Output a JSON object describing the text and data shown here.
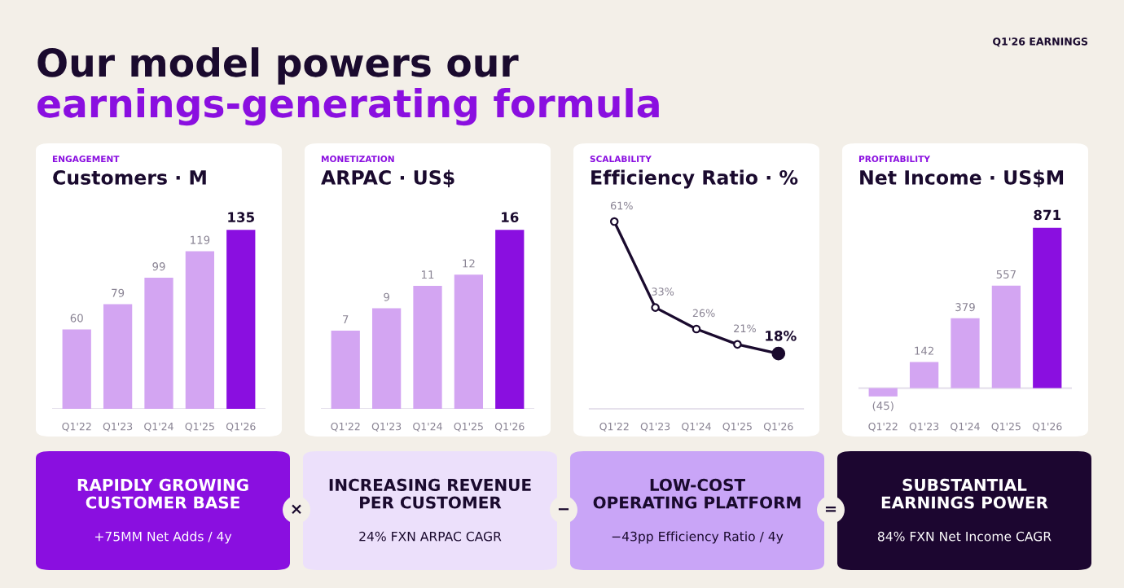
{
  "chart_data": [
    {
      "type": "other",
      "title": "Our model powers our",
      "subtitle": "earnings-generating formula",
      "annotations": [
        "Q1'26 EARNINGS"
      ]
    },
    {
      "type": "bar",
      "subtitle": "ENGAGEMENT",
      "title": "Customers · M",
      "categories": [
        "Q1'22",
        "Q1'23",
        "Q1'24",
        "Q1'25",
        "Q1'26"
      ],
      "values": [
        60,
        79,
        99,
        119,
        135
      ],
      "colors": [
        "#d3a5f2",
        "#d3a5f2",
        "#d3a5f2",
        "#d3a5f2",
        "#8a0fe0"
      ],
      "data_labels": true
    },
    {
      "type": "bar",
      "subtitle": "MONETIZATION",
      "title": "ARPAC · US$",
      "categories": [
        "Q1'22",
        "Q1'23",
        "Q1'24",
        "Q1'25",
        "Q1'26"
      ],
      "values": [
        7,
        9,
        11,
        12,
        16
      ],
      "colors": [
        "#d3a5f2",
        "#d3a5f2",
        "#d3a5f2",
        "#d3a5f2",
        "#8a0fe0"
      ],
      "data_labels": true
    },
    {
      "type": "line",
      "subtitle": "SCALABILITY",
      "title": "Efficiency Ratio · %",
      "categories": [
        "Q1'22",
        "Q1'23",
        "Q1'24",
        "Q1'25",
        "Q1'26"
      ],
      "values": [
        61,
        33,
        26,
        21,
        18
      ],
      "color": "#1a0a2e",
      "marker": "circle",
      "value_labels": [
        "61%",
        "33%",
        "26%",
        "21%",
        "18%"
      ]
    },
    {
      "type": "bar",
      "subtitle": "PROFITABILITY",
      "title": "Net Income · US$M",
      "categories": [
        "Q1'22",
        "Q1'23",
        "Q1'24",
        "Q1'25",
        "Q1'26"
      ],
      "values": [
        -45,
        142,
        379,
        557,
        871
      ],
      "colors": [
        "#d3a5f2",
        "#d3a5f2",
        "#d3a5f2",
        "#d3a5f2",
        "#8a0fe0"
      ],
      "value_labels": [
        "(45)",
        "142",
        "379",
        "557",
        "871"
      ]
    },
    {
      "type": "other",
      "annotations": [
        "RAPIDLY GROWING\nCUSTOMER BASE",
        "+75MM Net Adds / 4y",
        "×",
        "INCREASING REVENUE\nPER CUSTOMER",
        "24% FXN ARPAC CAGR",
        "−",
        "LOW-COST\nOPERATING PLATFORM",
        "−43pp Efficiency Ratio / 4y",
        "=",
        "SUBSTANTIAL\nEARNINGS POWER",
        "84% FXN Net Income CAGR"
      ]
    }
  ]
}
